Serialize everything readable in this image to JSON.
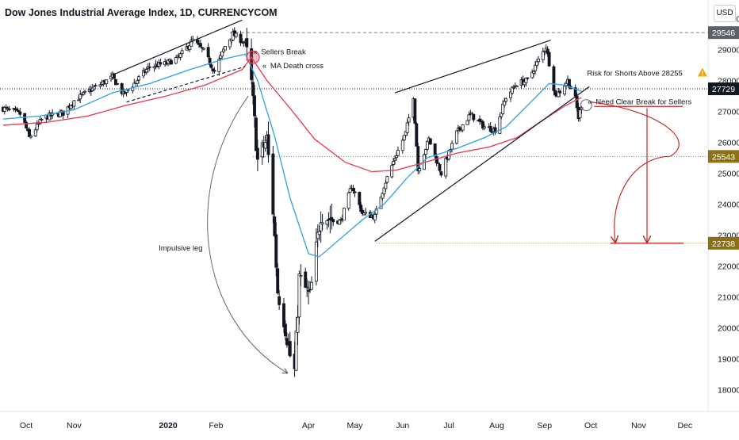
{
  "header": {
    "title": "Dow Jones Industrial Average Index, 1D, CURRENCYCOM",
    "currency_button": "USD"
  },
  "colors": {
    "candle": "#131722",
    "ma_fast": "#3ea6dc",
    "ma_slow": "#e0445c",
    "trendline": "#131722",
    "red_projection": "#c62828",
    "level_green": "#9c8d21",
    "price_label_bg": "#8b7016",
    "current_price_bg": "#131722",
    "warning": "#f0a30a"
  },
  "chart_data": {
    "type": "candlestick",
    "title": "",
    "y_axis": {
      "ylim": [
        17300,
        30600
      ],
      "ticks": [
        18000,
        19000,
        20000,
        21000,
        22000,
        23000,
        24000,
        25000,
        26000,
        27000,
        28000,
        29000,
        30000
      ],
      "tick_labels": [
        "18000",
        "19000",
        "20000",
        "21000",
        "22000",
        "23000",
        "24000",
        "25000",
        "26000",
        "27000",
        "28000",
        "29000",
        "30000"
      ]
    },
    "x_axis": {
      "date_range": [
        "2019-09-14",
        "2020-12-16"
      ],
      "ticks": [
        {
          "date": "2019-10-01",
          "label": "Oct",
          "bold": false
        },
        {
          "date": "2019-11-01",
          "label": "Nov",
          "bold": false
        },
        {
          "date": "2020-01-01",
          "label": "2020",
          "bold": true
        },
        {
          "date": "2020-02-01",
          "label": "Feb",
          "bold": false
        },
        {
          "date": "2020-04-01",
          "label": "Apr",
          "bold": false
        },
        {
          "date": "2020-05-01",
          "label": "May",
          "bold": false
        },
        {
          "date": "2020-06-01",
          "label": "Jun",
          "bold": false
        },
        {
          "date": "2020-07-01",
          "label": "Jul",
          "bold": false
        },
        {
          "date": "2020-08-01",
          "label": "Aug",
          "bold": false
        },
        {
          "date": "2020-09-01",
          "label": "Sep",
          "bold": false
        },
        {
          "date": "2020-10-01",
          "label": "Oct",
          "bold": false
        },
        {
          "date": "2020-11-01",
          "label": "Nov",
          "bold": false
        },
        {
          "date": "2020-12-01",
          "label": "Dec",
          "bold": false
        }
      ]
    },
    "price_anchors": [
      [
        "2019-09-16",
        27100
      ],
      [
        "2019-09-28",
        26900
      ],
      [
        "2019-10-03",
        26150
      ],
      [
        "2019-10-12",
        26800
      ],
      [
        "2019-10-25",
        26950
      ],
      [
        "2019-11-01",
        27350
      ],
      [
        "2019-11-12",
        27700
      ],
      [
        "2019-11-26",
        28100
      ],
      [
        "2019-12-03",
        27550
      ],
      [
        "2019-12-10",
        27900
      ],
      [
        "2019-12-20",
        28450
      ],
      [
        "2019-12-31",
        28550
      ],
      [
        "2020-01-08",
        28750
      ],
      [
        "2020-01-17",
        29300
      ],
      [
        "2020-01-24",
        28950
      ],
      [
        "2020-01-31",
        28300
      ],
      [
        "2020-02-07",
        29100
      ],
      [
        "2020-02-12",
        29500
      ],
      [
        "2020-02-20",
        29200
      ],
      [
        "2020-02-24",
        27900
      ],
      [
        "2020-02-28",
        25400
      ],
      [
        "2020-03-05",
        26100
      ],
      [
        "2020-03-09",
        23800
      ],
      [
        "2020-03-12",
        21200
      ],
      [
        "2020-03-16",
        20300
      ],
      [
        "2020-03-20",
        19100
      ],
      [
        "2020-03-23",
        18600
      ],
      [
        "2020-03-26",
        21600
      ],
      [
        "2020-04-02",
        21000
      ],
      [
        "2020-04-09",
        23700
      ],
      [
        "2020-04-16",
        23500
      ],
      [
        "2020-04-22",
        23450
      ],
      [
        "2020-04-29",
        24600
      ],
      [
        "2020-05-06",
        23700
      ],
      [
        "2020-05-14",
        23600
      ],
      [
        "2020-05-20",
        24600
      ],
      [
        "2020-05-27",
        25500
      ],
      [
        "2020-06-03",
        26300
      ],
      [
        "2020-06-08",
        27500
      ],
      [
        "2020-06-11",
        25100
      ],
      [
        "2020-06-18",
        26100
      ],
      [
        "2020-06-26",
        25000
      ],
      [
        "2020-07-06",
        26300
      ],
      [
        "2020-07-15",
        26900
      ],
      [
        "2020-07-24",
        26500
      ],
      [
        "2020-07-31",
        26400
      ],
      [
        "2020-08-07",
        27450
      ],
      [
        "2020-08-14",
        27900
      ],
      [
        "2020-08-21",
        28000
      ],
      [
        "2020-08-28",
        28650
      ],
      [
        "2020-09-02",
        29100
      ],
      [
        "2020-09-08",
        27500
      ],
      [
        "2020-09-11",
        27650
      ],
      [
        "2020-09-16",
        28000
      ],
      [
        "2020-09-21",
        27400
      ],
      [
        "2020-09-23",
        26800
      ],
      [
        "2020-09-25",
        27200
      ]
    ],
    "moving_averages": [
      {
        "period": "fast",
        "color": "#3ea6dc",
        "points": [
          [
            "2019-09-16",
            26750
          ],
          [
            "2019-10-10",
            26850
          ],
          [
            "2019-11-01",
            27050
          ],
          [
            "2019-11-26",
            27600
          ],
          [
            "2019-12-20",
            27900
          ],
          [
            "2020-01-15",
            28350
          ],
          [
            "2020-02-07",
            28700
          ],
          [
            "2020-02-20",
            28850
          ],
          [
            "2020-02-28",
            28000
          ],
          [
            "2020-03-10",
            26200
          ],
          [
            "2020-03-20",
            24200
          ],
          [
            "2020-04-01",
            22400
          ],
          [
            "2020-04-08",
            22300
          ],
          [
            "2020-04-22",
            22900
          ],
          [
            "2020-05-06",
            23500
          ],
          [
            "2020-05-20",
            24000
          ],
          [
            "2020-06-03",
            24800
          ],
          [
            "2020-06-17",
            25500
          ],
          [
            "2020-07-06",
            25800
          ],
          [
            "2020-07-24",
            26150
          ],
          [
            "2020-08-07",
            26500
          ],
          [
            "2020-08-21",
            27200
          ],
          [
            "2020-09-04",
            27900
          ],
          [
            "2020-09-14",
            27850
          ],
          [
            "2020-09-25",
            27650
          ]
        ]
      },
      {
        "period": "slow",
        "color": "#e0445c",
        "points": [
          [
            "2019-09-16",
            26550
          ],
          [
            "2019-10-15",
            26650
          ],
          [
            "2019-11-10",
            26850
          ],
          [
            "2019-12-05",
            27200
          ],
          [
            "2019-12-31",
            27500
          ],
          [
            "2020-01-25",
            27850
          ],
          [
            "2020-02-18",
            28350
          ],
          [
            "2020-02-24",
            28750
          ],
          [
            "2020-03-05",
            28000
          ],
          [
            "2020-03-20",
            27100
          ],
          [
            "2020-04-05",
            26100
          ],
          [
            "2020-04-25",
            25350
          ],
          [
            "2020-05-12",
            25050
          ],
          [
            "2020-05-28",
            25100
          ],
          [
            "2020-06-15",
            25350
          ],
          [
            "2020-07-06",
            25650
          ],
          [
            "2020-07-27",
            25850
          ],
          [
            "2020-08-14",
            26150
          ],
          [
            "2020-09-01",
            26750
          ],
          [
            "2020-09-15",
            27200
          ],
          [
            "2020-09-25",
            27450
          ]
        ]
      }
    ],
    "levels": [
      {
        "price": 29546,
        "label": "29546",
        "style": "dashed",
        "line_color": "#787b86",
        "label_bg": "#5d606b",
        "start_date": "2020-02-10"
      },
      {
        "price": 27729,
        "label": "27729",
        "style": "dotted",
        "line_color": "#131722",
        "label_bg": "#131722",
        "start_date": "2019-09-14"
      },
      {
        "price": 25543,
        "label": "25543",
        "style": "dotted",
        "line_color": "#9c8d21",
        "label_bg": "#8b7016",
        "start_date": "2020-02-25"
      },
      {
        "price": 22738,
        "label": "22738",
        "style": "dotted",
        "line_color": "#9c8d21",
        "label_bg": "#8b7016",
        "start_date": "2020-05-15"
      }
    ],
    "trendlines": [
      {
        "from": [
          "2019-11-27",
          28200
        ],
        "to": [
          "2020-02-18",
          29950
        ],
        "style": "solid"
      },
      {
        "from": [
          "2019-12-05",
          27300
        ],
        "to": [
          "2020-02-20",
          28450
        ],
        "style": "dashed"
      },
      {
        "from": [
          "2020-05-27",
          27600
        ],
        "to": [
          "2020-09-05",
          29300
        ],
        "style": "solid"
      },
      {
        "from": [
          "2020-05-14",
          22800
        ],
        "to": [
          "2020-09-30",
          27800
        ],
        "style": "solid"
      }
    ],
    "annotations": [
      {
        "text": "Sellers Break",
        "date": "2020-02-22",
        "price": 28950
      },
      {
        "text": "MA Death cross",
        "date": "2020-02-28",
        "price": 28500
      },
      {
        "text": "Impulsive leg",
        "date": "2019-12-31",
        "price": 22600
      },
      {
        "text": "Risk for Shorts Above 28255",
        "date": "2020-09-26",
        "price": 28255,
        "warning_icon": true
      },
      {
        "text": "Need Clear Break for Sellers",
        "date": "2020-09-28",
        "price": 27330
      }
    ],
    "projection": {
      "from_price": 27300,
      "pivot_price": 25543,
      "target_price": 22738
    }
  }
}
